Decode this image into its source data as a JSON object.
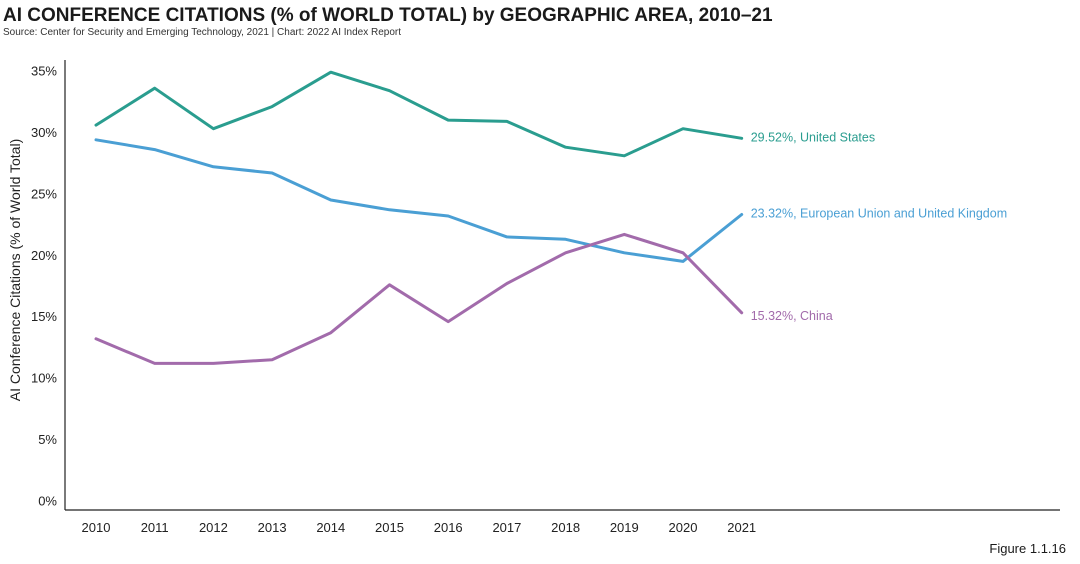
{
  "title": "AI CONFERENCE CITATIONS (% of WORLD TOTAL) by GEOGRAPHIC AREA, 2010–21",
  "source": "Source: Center for Security and Emerging Technology, 2021 | Chart: 2022 AI Index Report",
  "figure": "Figure 1.1.16",
  "chart_data": {
    "type": "line",
    "title": "AI CONFERENCE CITATIONS (% of WORLD TOTAL) by GEOGRAPHIC AREA, 2010–21",
    "xlabel": "",
    "ylabel": "AI Conference Citations (% of World Total)",
    "ylim": [
      0,
      35
    ],
    "yticks": [
      0,
      5,
      10,
      15,
      20,
      25,
      30,
      35
    ],
    "ytick_labels": [
      "0%",
      "5%",
      "10%",
      "15%",
      "20%",
      "25%",
      "30%",
      "35%"
    ],
    "x": [
      "2010",
      "2011",
      "2012",
      "2013",
      "2014",
      "2015",
      "2016",
      "2017",
      "2018",
      "2019",
      "2020",
      "2021"
    ],
    "grid": false,
    "series": [
      {
        "name": "United States",
        "end_label": "29.52%, United States",
        "color": "#2a9d8f",
        "values": [
          30.6,
          33.6,
          30.3,
          32.1,
          34.9,
          33.4,
          31.0,
          30.9,
          28.8,
          28.1,
          30.3,
          29.52
        ]
      },
      {
        "name": "European Union and United Kingdom",
        "end_label": "23.32%, European Union and United Kingdom",
        "color": "#4a9fd4",
        "values": [
          29.4,
          28.6,
          27.2,
          26.7,
          24.5,
          23.7,
          23.2,
          21.5,
          21.3,
          20.2,
          19.5,
          23.32
        ]
      },
      {
        "name": "China",
        "end_label": "15.32%, China",
        "color": "#a26bab",
        "values": [
          13.2,
          11.2,
          11.2,
          11.5,
          13.7,
          17.6,
          14.6,
          17.7,
          20.2,
          21.7,
          20.2,
          15.32
        ]
      }
    ]
  }
}
